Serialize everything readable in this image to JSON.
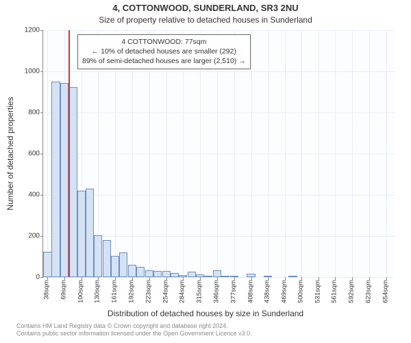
{
  "title_main": "4, COTTONWOOD, SUNDERLAND, SR3 2NU",
  "title_sub": "Size of property relative to detached houses in Sunderland",
  "ylabel": "Number of detached properties",
  "xlabel": "Distribution of detached houses by size in Sunderland",
  "attribution_line1": "Contains HM Land Registry data © Crown copyright and database right 2024.",
  "attribution_line2": "Contains public sector information licensed under the Open Government Licence v3.0.",
  "chart": {
    "type": "histogram",
    "plot_bg": "#fcfdff",
    "grid_color": "#e8eef6",
    "axis_color": "#888888",
    "bar_fill": "#d4e2f4",
    "bar_border": "#6b8ec5",
    "marker_color": "#d93030",
    "ylim": [
      0,
      1200
    ],
    "ytick_step": 200,
    "yticks": [
      0,
      200,
      400,
      600,
      800,
      1000,
      1200
    ],
    "xlim": [
      30,
      670
    ],
    "xticks": [
      38,
      69,
      100,
      130,
      161,
      192,
      223,
      254,
      284,
      315,
      346,
      377,
      408,
      438,
      469,
      500,
      531,
      561,
      592,
      623,
      654
    ],
    "xtick_suffix": "sqm",
    "bar_width_value": 15.3,
    "marker_x": 77,
    "marker_label": "4 COTTONWOOD: 77sqm",
    "annotation_line2": "← 10% of detached houses are smaller (292)",
    "annotation_line3": "89% of semi-detached houses are larger (2,510) →",
    "bars": [
      {
        "x": 38,
        "y": 125
      },
      {
        "x": 53,
        "y": 950
      },
      {
        "x": 69,
        "y": 945
      },
      {
        "x": 84,
        "y": 925
      },
      {
        "x": 100,
        "y": 420
      },
      {
        "x": 115,
        "y": 430
      },
      {
        "x": 130,
        "y": 205
      },
      {
        "x": 146,
        "y": 180
      },
      {
        "x": 161,
        "y": 105
      },
      {
        "x": 176,
        "y": 120
      },
      {
        "x": 192,
        "y": 60
      },
      {
        "x": 207,
        "y": 50
      },
      {
        "x": 223,
        "y": 35
      },
      {
        "x": 238,
        "y": 30
      },
      {
        "x": 254,
        "y": 30
      },
      {
        "x": 269,
        "y": 20
      },
      {
        "x": 284,
        "y": 10
      },
      {
        "x": 300,
        "y": 28
      },
      {
        "x": 315,
        "y": 12
      },
      {
        "x": 330,
        "y": 8
      },
      {
        "x": 346,
        "y": 32
      },
      {
        "x": 361,
        "y": 8
      },
      {
        "x": 377,
        "y": 5
      },
      {
        "x": 408,
        "y": 18
      },
      {
        "x": 438,
        "y": 8
      },
      {
        "x": 484,
        "y": 6
      }
    ]
  }
}
